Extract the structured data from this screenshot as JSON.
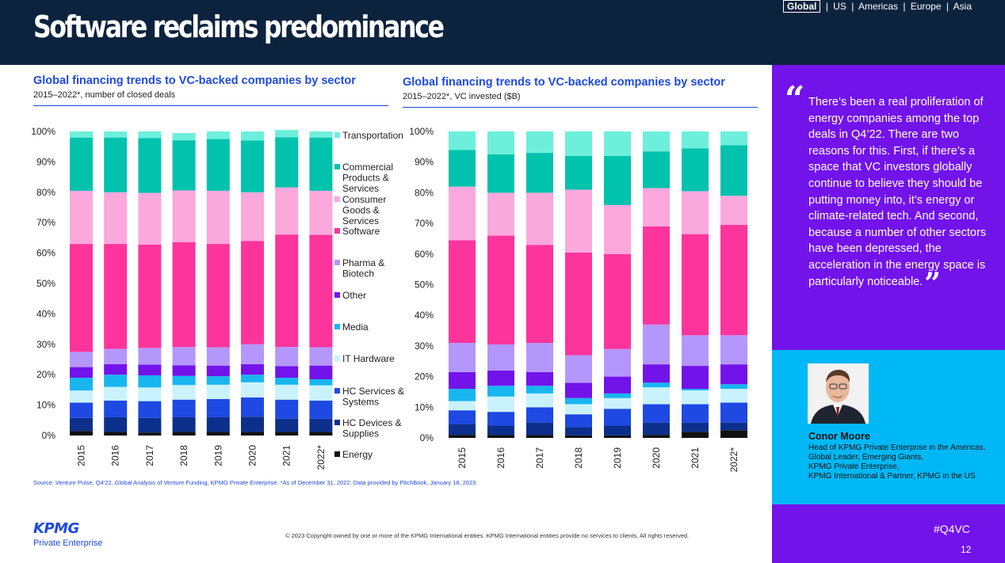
{
  "header": {
    "title": "Software reclaims predominance",
    "regions": [
      "Global",
      "US",
      "Americas",
      "Europe",
      "Asia"
    ],
    "active_region": "Global"
  },
  "chart_data": [
    {
      "type": "bar",
      "stacked": true,
      "title": "Global financing trends to VC-backed companies by sector",
      "subtitle": "2015–2022*, number of closed deals",
      "categories": [
        "2015",
        "2016",
        "2017",
        "2018",
        "2019",
        "2020",
        "2021",
        "2022*"
      ],
      "ylim": [
        0,
        100
      ],
      "yticks": [
        "0%",
        "10%",
        "20%",
        "30%",
        "40%",
        "50%",
        "60%",
        "70%",
        "80%",
        "90%",
        "100%"
      ],
      "legend_position": "right",
      "series": [
        {
          "name": "Energy",
          "color": "#111111",
          "values": [
            1.5,
            1.2,
            1.0,
            1.2,
            1.2,
            1.2,
            1.2,
            1.2
          ]
        },
        {
          "name": "HC Devices & Supplies",
          "color": "#0c2f8c",
          "values": [
            4.3,
            4.8,
            4.8,
            4.8,
            4.8,
            5.0,
            4.3,
            4.3
          ]
        },
        {
          "name": "HC Services & Systems",
          "color": "#1e49e2",
          "values": [
            5.0,
            5.5,
            5.5,
            5.8,
            6.0,
            6.3,
            6.3,
            6.0
          ]
        },
        {
          "name": "IT Hardware",
          "color": "#c9f2fd",
          "values": [
            4.0,
            4.5,
            4.5,
            4.8,
            4.7,
            5.0,
            4.9,
            5.0
          ]
        },
        {
          "name": "Media",
          "color": "#17b6ef",
          "values": [
            4.2,
            4.0,
            4.0,
            3.0,
            2.8,
            2.5,
            2.3,
            2.0
          ]
        },
        {
          "name": "Other",
          "color": "#7213ea",
          "values": [
            3.5,
            3.5,
            3.5,
            3.5,
            3.5,
            3.5,
            3.8,
            4.5
          ]
        },
        {
          "name": "Pharma & Biotech",
          "color": "#b497fb",
          "values": [
            5.0,
            5.0,
            5.5,
            6.0,
            6.0,
            6.5,
            6.3,
            6.0
          ]
        },
        {
          "name": "Software",
          "color": "#fd349c",
          "values": [
            35.5,
            34.5,
            34.0,
            34.5,
            34.0,
            34.0,
            37.0,
            37.0
          ]
        },
        {
          "name": "Consumer Goods & Services",
          "color": "#fba8dd",
          "values": [
            17.5,
            17.0,
            17.0,
            17.0,
            17.5,
            16.0,
            15.5,
            14.5
          ]
        },
        {
          "name": "Commercial Products & Services",
          "color": "#00c2ad",
          "values": [
            17.5,
            18.0,
            18.0,
            16.5,
            17.0,
            17.0,
            16.5,
            17.5
          ]
        },
        {
          "name": "Transportation",
          "color": "#6defdc",
          "values": [
            2.0,
            2.0,
            2.2,
            2.4,
            2.5,
            3.0,
            2.4,
            2.0
          ]
        }
      ]
    },
    {
      "type": "bar",
      "stacked": true,
      "title": "Global financing trends to VC-backed companies by sector",
      "subtitle": "2015–2022*, VC invested ($B)",
      "categories": [
        "2015",
        "2016",
        "2017",
        "2018",
        "2019",
        "2020",
        "2021",
        "2022*"
      ],
      "ylim": [
        0,
        100
      ],
      "yticks": [
        "0%",
        "10%",
        "20%",
        "30%",
        "40%",
        "50%",
        "60%",
        "70%",
        "80%",
        "90%",
        "100%"
      ],
      "series": [
        {
          "name": "Energy",
          "color": "#111111",
          "values": [
            1.0,
            1.0,
            1.0,
            0.8,
            0.8,
            1.0,
            2.0,
            2.5
          ]
        },
        {
          "name": "HC Devices & Supplies",
          "color": "#0c2f8c",
          "values": [
            3.5,
            3.0,
            4.0,
            2.7,
            3.2,
            4.0,
            3.0,
            2.5
          ]
        },
        {
          "name": "HC Services & Systems",
          "color": "#1e49e2",
          "values": [
            4.5,
            4.5,
            5.0,
            4.2,
            5.5,
            6.0,
            6.0,
            6.5
          ]
        },
        {
          "name": "IT Hardware",
          "color": "#c9f2fd",
          "values": [
            3.0,
            5.0,
            4.5,
            3.3,
            3.5,
            5.5,
            4.5,
            4.5
          ]
        },
        {
          "name": "Media",
          "color": "#17b6ef",
          "values": [
            4.0,
            3.5,
            2.5,
            2.0,
            1.5,
            1.5,
            0.5,
            1.5
          ]
        },
        {
          "name": "Other",
          "color": "#7213ea",
          "values": [
            5.5,
            5.0,
            4.5,
            5.0,
            5.5,
            6.0,
            7.5,
            6.5
          ]
        },
        {
          "name": "Pharma & Biotech",
          "color": "#b497fb",
          "values": [
            9.5,
            8.5,
            9.5,
            9.0,
            9.0,
            13.0,
            10.0,
            9.5
          ]
        },
        {
          "name": "Software",
          "color": "#fd349c",
          "values": [
            33.5,
            35.5,
            32.0,
            33.5,
            31.0,
            32.0,
            33.0,
            36.0
          ]
        },
        {
          "name": "Consumer Goods & Services",
          "color": "#fba8dd",
          "values": [
            17.5,
            14.0,
            17.0,
            20.5,
            16.0,
            12.5,
            14.0,
            9.5
          ]
        },
        {
          "name": "Commercial Products & Services",
          "color": "#00c2ad",
          "values": [
            12.0,
            12.5,
            13.0,
            11.0,
            16.0,
            12.0,
            14.0,
            16.5
          ]
        },
        {
          "name": "Transportation",
          "color": "#6defdc",
          "values": [
            6.0,
            7.5,
            7.0,
            8.0,
            8.0,
            6.5,
            5.5,
            4.5
          ]
        }
      ]
    }
  ],
  "legend_labels": [
    "Transportation",
    "Commercial Products & Services",
    "Consumer Goods & Services",
    "Software",
    "Pharma & Biotech",
    "Other",
    "Media",
    "IT Hardware",
    "HC Services & Systems",
    "HC Devices & Supplies",
    "Energy"
  ],
  "source": "Source: Venture Pulse, Q4'22, Global Analysis of Venture Funding, KPMG Private Enterprise. *As of December 31, 2022. Data provided by PitchBook, January 18, 2023",
  "sidebar": {
    "quote": "There’s been a real proliferation of energy companies among the top deals in Q4’22. There are two reasons for this. First, if there’s a space that VC investors globally continue to believe they should be putting money into, it’s energy or climate-related tech. And second, because a number of other sectors have been depressed, the acceleration in the energy space is particularly noticeable.",
    "person_name": "Conor Moore",
    "person_role": "Head of KPMG Private Enterprise in the Americas,\nGlobal Leader, Emerging Giants,\nKPMG Private Enterprise,\nKPMG International & Partner, KPMG in the US",
    "hashtag": "#Q4VC",
    "page_number": "12"
  },
  "footer": {
    "logo_text": "KPMG",
    "logo_subtext": "Private Enterprise",
    "copyright": "© 2023 Copyright owned by one or more of the KPMG International entities. KPMG International entities provide no services to clients. All rights reserved."
  }
}
